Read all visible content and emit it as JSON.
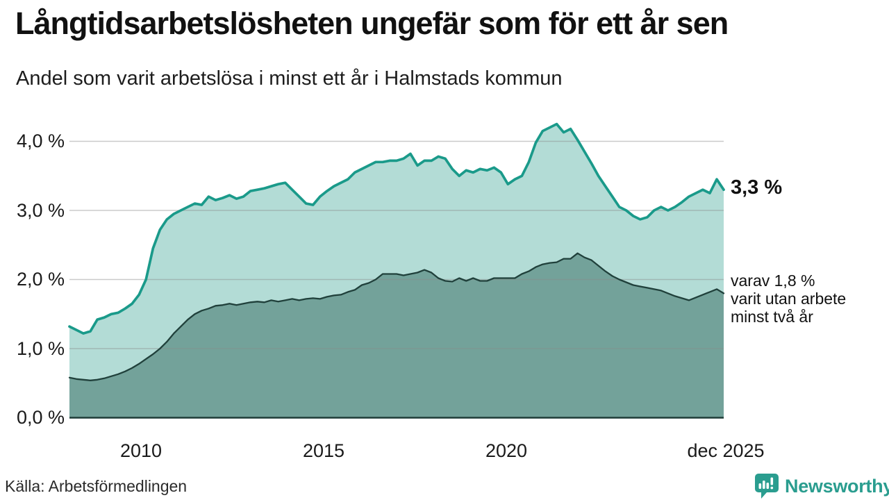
{
  "title": "Långtidsarbetslösheten ungefär som för ett år sen",
  "subtitle": "Andel som varit arbetslösa i minst ett år i Halmstads kommun",
  "source": "Källa: Arbetsförmedlingen",
  "logo": {
    "text": "Newsworthy"
  },
  "annotations": {
    "latest_value": "3,3 %",
    "secondary": [
      "varav 1,8 %",
      "varit utan arbete",
      "minst två år"
    ]
  },
  "colors": {
    "series1_line": "#1a9a8a",
    "series1_fill": "#b3dcd6",
    "series2_line": "#20403b",
    "series2_fill": "#73a29a",
    "gridline": "#8a8a8a",
    "baseline": "#1f3d38",
    "brand": "#2a9d8f",
    "text": "#111111"
  },
  "chart_data": {
    "type": "area",
    "title": "Andel som varit arbetslösa i minst ett år i Halmstads kommun",
    "unit": "%",
    "grid": true,
    "x_start": "jan 2008",
    "x_end": "dec 2025",
    "xlim_years": [
      2008.0,
      2025.92
    ],
    "ylim": [
      0,
      4.4
    ],
    "y_axis": {
      "ticks": [
        "4,0 %",
        "3,0 %",
        "2,0 %",
        "1,0 %",
        "0,0 %"
      ],
      "tick_values": [
        4,
        3,
        2,
        1,
        0
      ]
    },
    "x_axis": {
      "ticks": [
        "2010",
        "2015",
        "2020",
        "dec 2025"
      ],
      "tick_years": [
        2010,
        2015,
        2020,
        2025.92
      ]
    },
    "series": [
      {
        "name": "Arbetslösa minst ett år",
        "latest_label": "3,3 %",
        "latest": 3.3,
        "color": "#1a9a8a",
        "fill": "#b3dcd6",
        "values": [
          1.32,
          1.27,
          1.22,
          1.25,
          1.42,
          1.45,
          1.5,
          1.52,
          1.58,
          1.65,
          1.78,
          2.0,
          2.45,
          2.72,
          2.87,
          2.95,
          3.0,
          3.05,
          3.1,
          3.08,
          3.2,
          3.15,
          3.18,
          3.22,
          3.17,
          3.2,
          3.28,
          3.3,
          3.32,
          3.35,
          3.38,
          3.4,
          3.3,
          3.2,
          3.1,
          3.08,
          3.2,
          3.28,
          3.35,
          3.4,
          3.45,
          3.55,
          3.6,
          3.65,
          3.7,
          3.7,
          3.72,
          3.72,
          3.75,
          3.82,
          3.65,
          3.72,
          3.72,
          3.78,
          3.75,
          3.6,
          3.5,
          3.58,
          3.55,
          3.6,
          3.58,
          3.62,
          3.55,
          3.38,
          3.45,
          3.5,
          3.7,
          3.98,
          4.15,
          4.2,
          4.25,
          4.13,
          4.18,
          4.02,
          3.85,
          3.68,
          3.5,
          3.35,
          3.2,
          3.05,
          3.0,
          2.92,
          2.87,
          2.9,
          3.0,
          3.05,
          3.0,
          3.05,
          3.12,
          3.2,
          3.25,
          3.3,
          3.25,
          3.45,
          3.3
        ]
      },
      {
        "name": "varav utan arbete minst två år",
        "latest_label": "varav 1,8 % varit utan arbete minst två år",
        "latest": 1.8,
        "color": "#20403b",
        "fill": "#73a29a",
        "values": [
          0.58,
          0.56,
          0.55,
          0.54,
          0.55,
          0.57,
          0.6,
          0.63,
          0.67,
          0.72,
          0.78,
          0.85,
          0.92,
          1.0,
          1.1,
          1.22,
          1.32,
          1.42,
          1.5,
          1.55,
          1.58,
          1.62,
          1.63,
          1.65,
          1.63,
          1.65,
          1.67,
          1.68,
          1.67,
          1.7,
          1.68,
          1.7,
          1.72,
          1.7,
          1.72,
          1.73,
          1.72,
          1.75,
          1.77,
          1.78,
          1.82,
          1.85,
          1.92,
          1.95,
          2.0,
          2.08,
          2.08,
          2.08,
          2.06,
          2.08,
          2.1,
          2.14,
          2.1,
          2.02,
          1.98,
          1.97,
          2.02,
          1.98,
          2.02,
          1.98,
          1.98,
          2.02,
          2.02,
          2.02,
          2.02,
          2.08,
          2.12,
          2.18,
          2.22,
          2.24,
          2.25,
          2.3,
          2.3,
          2.38,
          2.32,
          2.28,
          2.2,
          2.12,
          2.05,
          2.0,
          1.96,
          1.92,
          1.9,
          1.88,
          1.86,
          1.84,
          1.8,
          1.76,
          1.73,
          1.7,
          1.74,
          1.78,
          1.82,
          1.86,
          1.8
        ]
      }
    ]
  }
}
